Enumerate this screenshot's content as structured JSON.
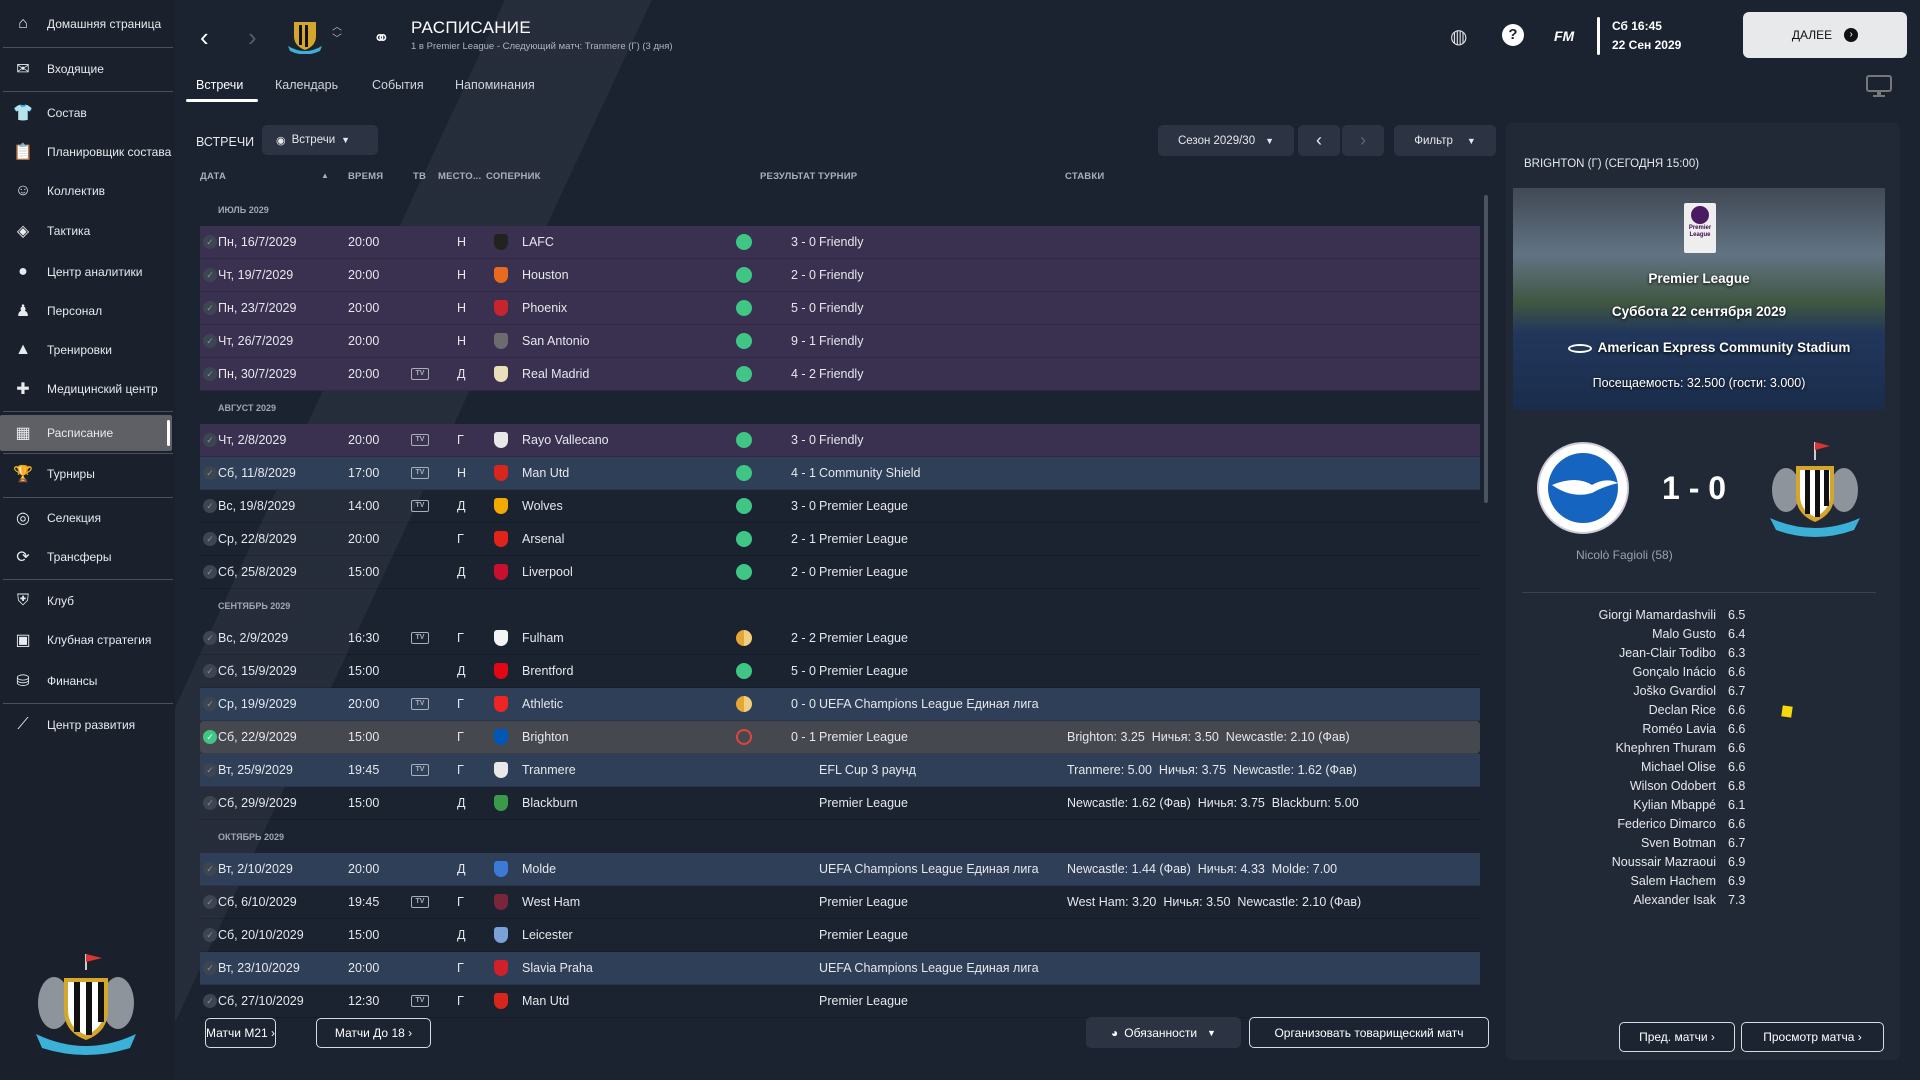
{
  "sidebar": {
    "items": [
      {
        "label": "Домашняя страница",
        "icon": "home-icon",
        "glyph": "⌂"
      },
      {
        "label": "Входящие",
        "icon": "mail-icon",
        "glyph": "✉"
      },
      {
        "label": "Состав",
        "icon": "shirt-icon",
        "glyph": "👕"
      },
      {
        "label": "Планировщик состава",
        "icon": "clipboard-icon",
        "glyph": "📋"
      },
      {
        "label": "Коллектив",
        "icon": "head-icon",
        "glyph": "☺"
      },
      {
        "label": "Тактика",
        "icon": "tactics-board-icon",
        "glyph": "◈"
      },
      {
        "label": "Центр аналитики",
        "icon": "analytics-icon",
        "glyph": "●"
      },
      {
        "label": "Персонал",
        "icon": "staff-icon",
        "glyph": "♟"
      },
      {
        "label": "Тренировки",
        "icon": "cone-icon",
        "glyph": "▲"
      },
      {
        "label": "Медицинский центр",
        "icon": "medical-kit-icon",
        "glyph": "✚"
      },
      {
        "label": "Расписание",
        "icon": "calendar-icon",
        "glyph": "▦",
        "active": true
      },
      {
        "label": "Турниры",
        "icon": "trophy-icon",
        "glyph": "🏆"
      },
      {
        "label": "Селекция",
        "icon": "binoculars-icon",
        "glyph": "◎"
      },
      {
        "label": "Трансферы",
        "icon": "transfer-icon",
        "glyph": "⟳"
      },
      {
        "label": "Клуб",
        "icon": "shield-icon",
        "glyph": "⛨"
      },
      {
        "label": "Клубная стратегия",
        "icon": "strategy-icon",
        "glyph": "▣"
      },
      {
        "label": "Финансы",
        "icon": "coins-icon",
        "glyph": "⛁"
      },
      {
        "label": "Центр развития",
        "icon": "development-icon",
        "glyph": "⟋"
      }
    ]
  },
  "header": {
    "title": "РАСПИСАНИЕ",
    "subtitle": "1 в Premier League - Следующий матч: Tranmere (Г) (3 дня)",
    "time": "Сб 16:45",
    "date": "22 Сен 2029",
    "continue_label": "ДАЛЕЕ",
    "fm_label": "FM"
  },
  "tabs": [
    {
      "label": "Встречи",
      "active": true
    },
    {
      "label": "Календарь"
    },
    {
      "label": "События"
    },
    {
      "label": "Напоминания"
    }
  ],
  "filters": {
    "section_label": "ВСТРЕЧИ",
    "view_label": "Встречи",
    "season_label": "Сезон 2029/30",
    "filter_label": "Фильтр"
  },
  "columns": {
    "date": "ДАТА",
    "time": "ВРЕМЯ",
    "tv": "ТВ",
    "venue": "МЕСТО...",
    "opponent": "СОПЕРНИК",
    "result": "РЕЗУЛЬТАТ",
    "competition": "ТУРНИР",
    "odds": "СТАВКИ"
  },
  "colors": {
    "win": "#3fc684",
    "draw": "#e4a634",
    "loss": "#e0443c",
    "friendly_row": "#3a3150",
    "cup_row": "#2f3f58",
    "selected_row": "#45484f"
  },
  "schedule": [
    {
      "month": "ИЮЛЬ 2029"
    },
    {
      "date": "Пн, 16/7/2029",
      "time": "20:00",
      "tv": false,
      "venue": "Н",
      "team": "LAFC",
      "badge": "#222",
      "outcome": "win",
      "score": "3 - 0",
      "comp": "Friendly",
      "odds": "",
      "style": "friendly"
    },
    {
      "date": "Чт, 19/7/2029",
      "time": "20:00",
      "tv": false,
      "venue": "Н",
      "team": "Houston",
      "badge": "#e86a1f",
      "outcome": "win",
      "score": "2 - 0",
      "comp": "Friendly",
      "odds": "",
      "style": "friendly"
    },
    {
      "date": "Пн, 23/7/2029",
      "time": "20:00",
      "tv": false,
      "venue": "Н",
      "team": "Phoenix",
      "badge": "#c8242b",
      "outcome": "win",
      "score": "5 - 0",
      "comp": "Friendly",
      "odds": "",
      "style": "friendly"
    },
    {
      "date": "Чт, 26/7/2029",
      "time": "20:00",
      "tv": false,
      "venue": "Н",
      "team": "San Antonio",
      "badge": "#6b6b70",
      "outcome": "win",
      "score": "9 - 1",
      "comp": "Friendly",
      "odds": "",
      "style": "friendly"
    },
    {
      "date": "Пн, 30/7/2029",
      "time": "20:00",
      "tv": true,
      "venue": "Д",
      "team": "Real Madrid",
      "badge": "#e9dfb8",
      "outcome": "win",
      "score": "4 - 2",
      "comp": "Friendly",
      "odds": "",
      "style": "friendly"
    },
    {
      "month": "АВГУСТ 2029"
    },
    {
      "date": "Чт, 2/8/2029",
      "time": "20:00",
      "tv": true,
      "venue": "Г",
      "team": "Rayo Vallecano",
      "badge": "#e8e8e8",
      "outcome": "win",
      "score": "3 - 0",
      "comp": "Friendly",
      "odds": "",
      "style": "friendly"
    },
    {
      "date": "Сб, 11/8/2029",
      "time": "17:00",
      "tv": true,
      "venue": "Н",
      "team": "Man Utd",
      "badge": "#d9261c",
      "outcome": "win",
      "score": "4 - 1",
      "comp": "Community Shield",
      "odds": "",
      "style": "cup"
    },
    {
      "date": "Вс, 19/8/2029",
      "time": "14:00",
      "tv": true,
      "venue": "Д",
      "team": "Wolves",
      "badge": "#f2a900",
      "outcome": "win",
      "score": "3 - 0",
      "comp": "Premier League",
      "odds": "",
      "style": "plain"
    },
    {
      "date": "Ср, 22/8/2029",
      "time": "20:00",
      "tv": false,
      "venue": "Г",
      "team": "Arsenal",
      "badge": "#e2231a",
      "outcome": "win",
      "score": "2 - 1",
      "comp": "Premier League",
      "odds": "",
      "style": "plain"
    },
    {
      "date": "Сб, 25/8/2029",
      "time": "15:00",
      "tv": false,
      "venue": "Д",
      "team": "Liverpool",
      "badge": "#c8102e",
      "outcome": "win",
      "score": "2 - 0",
      "comp": "Premier League",
      "odds": "",
      "style": "plain"
    },
    {
      "month": "СЕНТЯБРЬ 2029"
    },
    {
      "date": "Вс, 2/9/2029",
      "time": "16:30",
      "tv": true,
      "venue": "Г",
      "team": "Fulham",
      "badge": "#f4f4f4",
      "outcome": "draw",
      "score": "2 - 2",
      "comp": "Premier League",
      "odds": "",
      "style": "plain"
    },
    {
      "date": "Сб, 15/9/2029",
      "time": "15:00",
      "tv": false,
      "venue": "Д",
      "team": "Brentford",
      "badge": "#e30613",
      "outcome": "win",
      "score": "5 - 0",
      "comp": "Premier League",
      "odds": "",
      "style": "plain"
    },
    {
      "date": "Ср, 19/9/2029",
      "time": "20:00",
      "tv": true,
      "venue": "Г",
      "team": "Athletic",
      "badge": "#ee2523",
      "outcome": "draw",
      "score": "0 - 0",
      "comp": "UEFA Champions League Единая лига",
      "odds": "",
      "style": "cup"
    },
    {
      "date": "Сб, 22/9/2029",
      "time": "15:00",
      "tv": false,
      "venue": "Г",
      "team": "Brighton",
      "badge": "#0057b8",
      "outcome": "loss",
      "score": "0 - 1",
      "comp": "Premier League",
      "odds": "Brighton: 3.25  Ничья: 3.50  Newcastle: 2.10 (Фав)",
      "style": "selected",
      "checked": true
    },
    {
      "date": "Вт, 25/9/2029",
      "time": "19:45",
      "tv": true,
      "venue": "Г",
      "team": "Tranmere",
      "badge": "#e8e8e8",
      "outcome": "",
      "score": "",
      "comp": "EFL Cup 3 раунд",
      "odds": "Tranmere: 5.00  Ничья: 3.75  Newcastle: 1.62 (Фав)",
      "style": "cup"
    },
    {
      "date": "Сб, 29/9/2029",
      "time": "15:00",
      "tv": false,
      "venue": "Д",
      "team": "Blackburn",
      "badge": "#3a9a4a",
      "outcome": "",
      "score": "",
      "comp": "Premier League",
      "odds": "Newcastle: 1.62 (Фав)  Ничья: 3.75  Blackburn: 5.00",
      "style": "plain"
    },
    {
      "month": "ОКТЯБРЬ 2029"
    },
    {
      "date": "Вт, 2/10/2029",
      "time": "20:00",
      "tv": false,
      "venue": "Д",
      "team": "Molde",
      "badge": "#3b7bd6",
      "outcome": "",
      "score": "",
      "comp": "UEFA Champions League Единая лига",
      "odds": "Newcastle: 1.44 (Фав)  Ничья: 4.33  Molde: 7.00",
      "style": "cup"
    },
    {
      "date": "Сб, 6/10/2029",
      "time": "19:45",
      "tv": true,
      "venue": "Г",
      "team": "West Ham",
      "badge": "#7a263a",
      "outcome": "",
      "score": "",
      "comp": "Premier League",
      "odds": "West Ham: 3.20  Ничья: 3.50  Newcastle: 2.10 (Фав)",
      "style": "plain"
    },
    {
      "date": "Сб, 20/10/2029",
      "time": "15:00",
      "tv": false,
      "venue": "Д",
      "team": "Leicester",
      "badge": "#7aa2d6",
      "outcome": "",
      "score": "",
      "comp": "Premier League",
      "odds": "",
      "style": "plain"
    },
    {
      "date": "Вт, 23/10/2029",
      "time": "20:00",
      "tv": false,
      "venue": "Г",
      "team": "Slavia Praha",
      "badge": "#d0202a",
      "outcome": "",
      "score": "",
      "comp": "UEFA Champions League Единая лига",
      "odds": "",
      "style": "cup"
    },
    {
      "date": "Сб, 27/10/2029",
      "time": "12:30",
      "tv": true,
      "venue": "Г",
      "team": "Man Utd",
      "badge": "#d9261c",
      "outcome": "",
      "score": "",
      "comp": "Premier League",
      "odds": "",
      "style": "plain"
    }
  ],
  "bottom": {
    "u21": "Матчи М21",
    "u18": "Матчи До 18",
    "duties": "Обязанности",
    "friendly": "Организовать товарищеский матч",
    "prev_matches": "Пред. матчи",
    "view_match": "Просмотр матча"
  },
  "panel": {
    "title": "BRIGHTON (Г) (СЕГОДНЯ 15:00)",
    "logo_text": "Premier League",
    "competition": "Premier League",
    "date": "Суббота 22 сентября 2029",
    "stadium": "American Express Community Stadium",
    "attendance": "Посещаемость: 32.500 (гости: 3.000)",
    "score": "1 - 0",
    "scorer": "Nicolò Fagioli (58)",
    "ratings": [
      {
        "name": "Giorgi Mamardashvili",
        "value": "6.5"
      },
      {
        "name": "Malo Gusto",
        "value": "6.4"
      },
      {
        "name": "Jean-Clair Todibo",
        "value": "6.3"
      },
      {
        "name": "Gonçalo Inácio",
        "value": "6.6"
      },
      {
        "name": "Joško Gvardiol",
        "value": "6.7"
      },
      {
        "name": "Declan Rice",
        "value": "6.6",
        "yellow_card": true
      },
      {
        "name": "Roméo Lavia",
        "value": "6.6"
      },
      {
        "name": "Khephren Thuram",
        "value": "6.6"
      },
      {
        "name": "Michael Olise",
        "value": "6.6"
      },
      {
        "name": "Wilson Odobert",
        "value": "6.8"
      },
      {
        "name": "Kylian Mbappé",
        "value": "6.1"
      },
      {
        "name": "Federico Dimarco",
        "value": "6.6"
      },
      {
        "name": "Sven Botman",
        "value": "6.7"
      },
      {
        "name": "Noussair Mazraoui",
        "value": "6.9"
      },
      {
        "name": "Salem Hachem",
        "value": "6.9"
      },
      {
        "name": "Alexander Isak",
        "value": "7.3"
      }
    ]
  }
}
